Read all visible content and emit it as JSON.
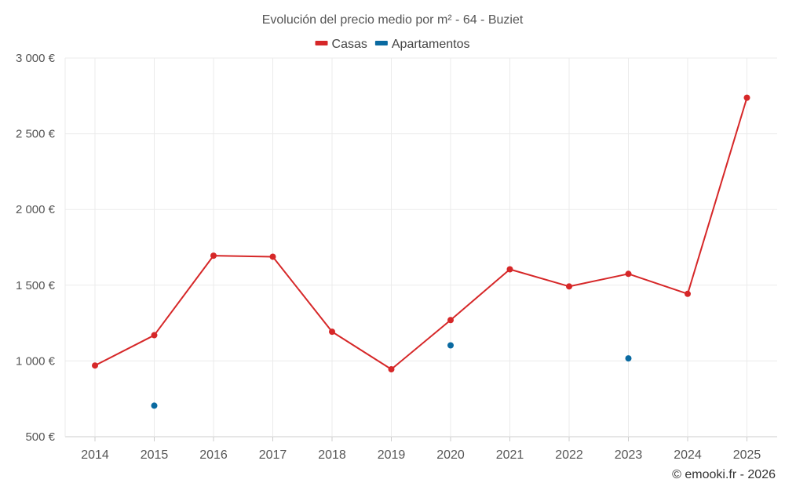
{
  "chart_data": {
    "type": "line",
    "title": "Evolución del precio medio por m² - 64 - Buziet",
    "xlabel": "",
    "ylabel": "",
    "categories": [
      "2014",
      "2015",
      "2016",
      "2017",
      "2018",
      "2019",
      "2020",
      "2021",
      "2022",
      "2023",
      "2024",
      "2025"
    ],
    "ylim": [
      500,
      3000
    ],
    "yticks": [
      500,
      1000,
      1500,
      2000,
      2500,
      3000
    ],
    "ytick_labels": [
      "500 €",
      "1 000 €",
      "1 500 €",
      "2 000 €",
      "2 500 €",
      "3 000 €"
    ],
    "grid": true,
    "legend_position": "top-center",
    "series": [
      {
        "name": "Casas",
        "color": "#d62728",
        "show_line": true,
        "values": [
          970,
          1170,
          1695,
          1688,
          1193,
          945,
          1270,
          1605,
          1492,
          1575,
          1443,
          2738
        ]
      },
      {
        "name": "Apartamentos",
        "color": "#0a6aa1",
        "show_line": false,
        "values": [
          null,
          705,
          null,
          null,
          null,
          null,
          1103,
          null,
          null,
          1017,
          null,
          null
        ]
      }
    ]
  },
  "credit": "© emooki.fr - 2026"
}
